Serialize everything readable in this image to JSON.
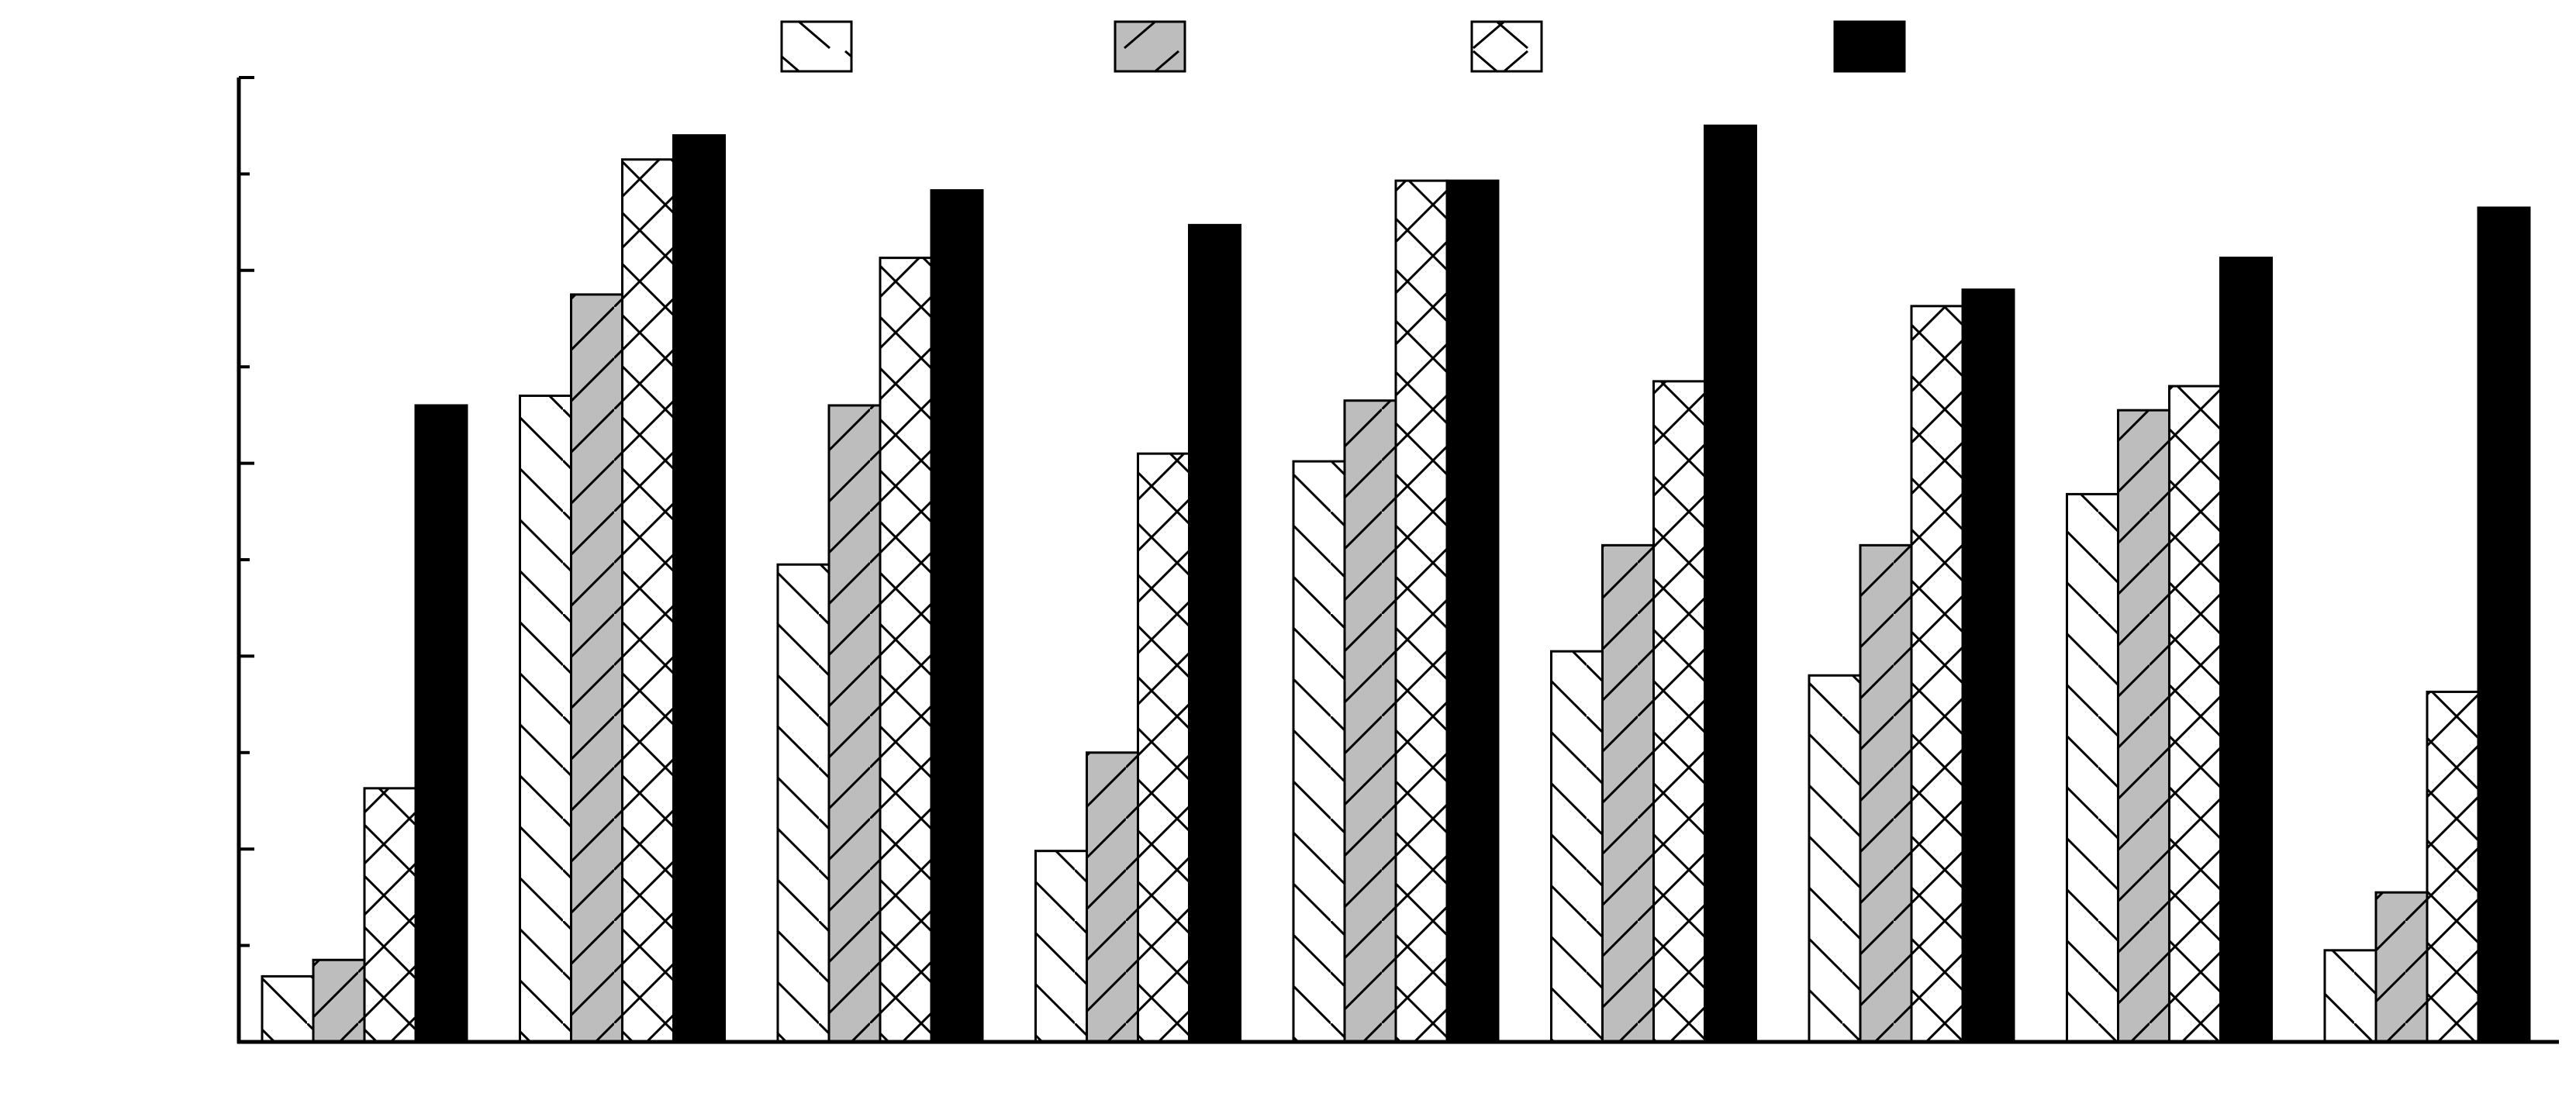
{
  "chart_data": {
    "type": "bar",
    "title": "",
    "xlabel": "",
    "ylabel": "",
    "ylim": [
      0,
      100
    ],
    "y_major_ticks": [
      0,
      20,
      40,
      60,
      80,
      100
    ],
    "y_minor_step": 10,
    "categories": [
      "",
      "",
      "",
      "",
      "",
      "",
      "",
      "",
      "",
      ""
    ],
    "series": [
      {
        "name": "",
        "pattern": "diag-down",
        "fill": "#ffffff",
        "values": [
          6.8,
          67.0,
          49.5,
          19.8,
          60.2,
          40.5,
          38.0,
          56.8,
          9.5,
          0
        ]
      },
      {
        "name": "",
        "pattern": "diag-up",
        "fill": "#bdbdbd",
        "values": [
          8.5,
          77.5,
          66.0,
          30.0,
          66.5,
          51.5,
          51.5,
          65.5,
          15.5,
          0
        ]
      },
      {
        "name": "",
        "pattern": "cross",
        "fill": "#ffffff",
        "values": [
          26.3,
          91.5,
          81.3,
          61.0,
          89.3,
          68.5,
          76.3,
          68.0,
          36.3,
          0
        ]
      },
      {
        "name": "",
        "pattern": "solid",
        "fill": "#000000",
        "values": [
          66.0,
          94.0,
          88.3,
          84.7,
          89.3,
          95.0,
          78.0,
          81.3,
          86.5,
          0
        ]
      }
    ],
    "grid": false,
    "legend_position": "top"
  }
}
